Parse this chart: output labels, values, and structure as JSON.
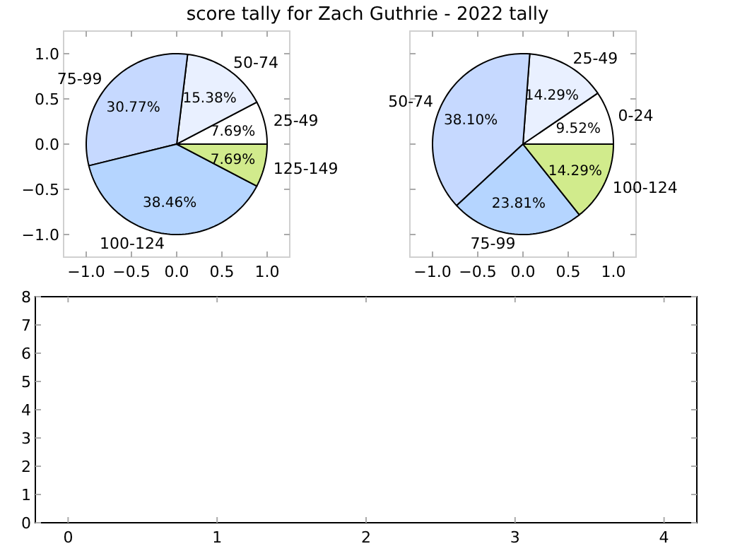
{
  "chart_data": [
    {
      "type": "scatter",
      "title": "score tally for Zach Guthrie - 2022 tally",
      "xlim": [
        -1.25,
        1.25
      ],
      "ylim": [
        -1.25,
        1.25
      ],
      "xticks": [
        {
          "value": -1,
          "label": "−1.0"
        },
        {
          "value": -0.5,
          "label": "−0.5"
        },
        {
          "value": 0,
          "label": "0.0"
        },
        {
          "value": 0.5,
          "label": "0.5"
        },
        {
          "value": 1,
          "label": "1.0"
        }
      ],
      "yticks": [
        {
          "value": -1,
          "label": "−1.0"
        },
        {
          "value": -0.5,
          "label": "−0.5"
        },
        {
          "value": 0,
          "label": "0.0"
        },
        {
          "value": 0.5,
          "label": "0.5"
        },
        {
          "value": 1,
          "label": "1.0"
        }
      ]
    },
    {
      "type": "pie",
      "categories": [
        "25-49",
        "50-74",
        "75-99",
        "100-124",
        "125-149"
      ],
      "values": [
        7.69,
        15.38,
        30.77,
        38.46,
        7.69
      ],
      "colors": [
        "#ffffff",
        "#e9f0ff",
        "#c6d9ff",
        "#b5d5ff",
        "#d1eb8c"
      ],
      "value_labels": [
        "7.69%",
        "15.38%",
        "30.77%",
        "38.46%",
        "7.69%"
      ]
    },
    {
      "type": "scatter",
      "xlim": [
        -1.25,
        1.25
      ],
      "ylim": [
        -1.25,
        1.25
      ],
      "xticks": [
        {
          "value": -1,
          "label": "−1.0"
        },
        {
          "value": -0.5,
          "label": "−0.5"
        },
        {
          "value": 0,
          "label": "0.0"
        },
        {
          "value": 0.5,
          "label": "0.5"
        },
        {
          "value": 1,
          "label": "1.0"
        }
      ],
      "yticks": [
        -1,
        -0.5,
        0,
        0.5,
        1
      ],
      "tick_labels": "x"
    },
    {
      "type": "pie",
      "categories": [
        "0-24",
        "25-49",
        "50-74",
        "75-99",
        "100-124"
      ],
      "values": [
        9.52,
        14.29,
        38.1,
        23.81,
        14.29
      ],
      "colors": [
        "#ffffff",
        "#e9f0ff",
        "#c6d9ff",
        "#b5d5ff",
        "#d1eb8c"
      ],
      "value_labels": [
        "9.52%",
        "14.29%",
        "38.10%",
        "23.81%",
        "14.29%"
      ]
    },
    {
      "type": "scatter",
      "xlim": [
        -0.22,
        4.22
      ],
      "ylim": [
        0,
        8
      ],
      "xticks": [
        0,
        1,
        2,
        3,
        4
      ],
      "yticks": [
        0,
        1,
        2,
        3,
        4,
        5,
        6,
        7,
        8
      ]
    }
  ]
}
